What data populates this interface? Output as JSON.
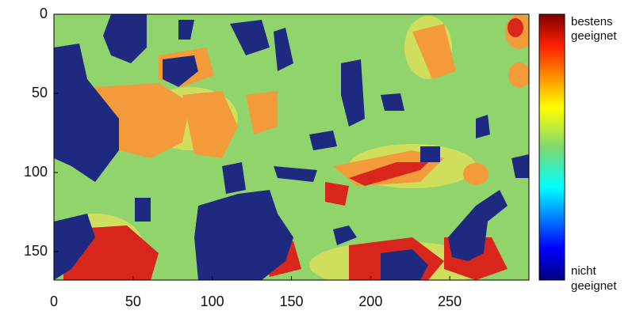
{
  "chart_data": {
    "type": "heatmap",
    "xlim": [
      0,
      300
    ],
    "ylim": [
      0,
      168
    ],
    "xticks": [
      0,
      50,
      100,
      150,
      200,
      250
    ],
    "yticks": [
      0,
      50,
      100,
      150
    ],
    "y_reversed": true,
    "colorbar_top": [
      "bestens",
      "geeignet"
    ],
    "colorbar_bottom": [
      "nicht",
      "geeignet"
    ]
  }
}
